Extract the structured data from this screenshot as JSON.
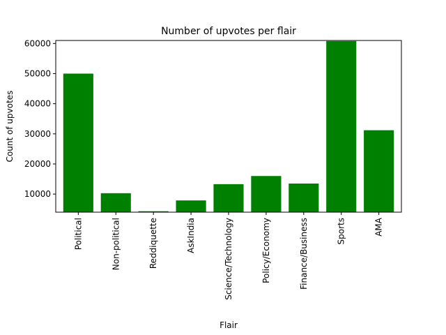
{
  "chart_data": {
    "type": "bar",
    "title": "Number of upvotes per flair",
    "xlabel": "Flair",
    "ylabel": "Count of upvotes",
    "categories": [
      "Political",
      "Non-political",
      "Reddiquette",
      "AskIndia",
      "Science/Technology",
      "Policy/Economy",
      "Finance/Business",
      "Sports",
      "AMA"
    ],
    "values": [
      50000,
      10300,
      4300,
      7900,
      13300,
      16000,
      13500,
      60800,
      31200
    ],
    "ylim": [
      4000,
      61000
    ],
    "yticks": [
      10000,
      20000,
      30000,
      40000,
      50000,
      60000
    ],
    "ytick_labels": [
      "10000",
      "20000",
      "30000",
      "40000",
      "50000",
      "60000"
    ],
    "bar_color": "#008000",
    "grid": false,
    "legend": false
  }
}
